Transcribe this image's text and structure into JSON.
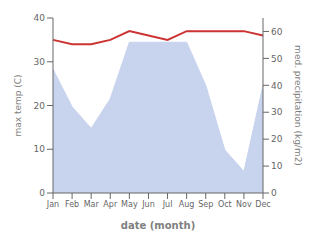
{
  "chart_data": {
    "type": "line",
    "categories": [
      "Jan",
      "Feb",
      "Mar",
      "Apr",
      "May",
      "Jun",
      "Jul",
      "Aug",
      "Sep",
      "Oct",
      "Nov",
      "Dec"
    ],
    "series": [
      {
        "type": "area",
        "axis": "y2",
        "color": "#c8d4ee",
        "values": [
          46,
          32,
          24,
          35,
          56,
          56,
          56,
          56,
          40,
          16,
          8,
          40
        ]
      },
      {
        "type": "line",
        "color": "#cc3333",
        "values": [
          35,
          34,
          34,
          35,
          37,
          36,
          35,
          37,
          37,
          37,
          37,
          36
        ]
      }
    ],
    "xlabel": "date (month)",
    "ylabel": "max temp (C)",
    "y2label": "med. precipitation (kg/m2)",
    "ylim": [
      0,
      40
    ],
    "yticks": [
      0,
      10,
      20,
      30,
      40
    ],
    "y2lim": [
      0,
      65
    ],
    "y2ticks": [
      0,
      10,
      20,
      30,
      40,
      50,
      60
    ],
    "grid": false
  }
}
